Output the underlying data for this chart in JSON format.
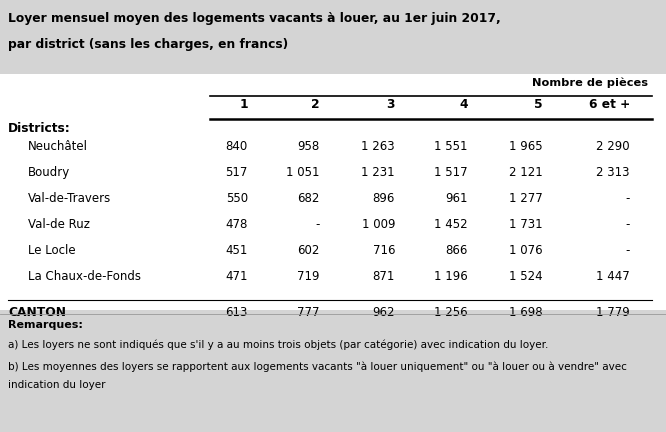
{
  "title_line1": "Loyer mensuel moyen des logements vacants à louer, au 1er juin 2017,",
  "title_line2": "par district (sans les charges, en francs)",
  "header_group": "Nombre de pièces",
  "col_headers": [
    "1",
    "2",
    "3",
    "4",
    "5",
    "6 et +"
  ],
  "districts_label": "Districts:",
  "canton_label": "CANTON",
  "rows": [
    {
      "name": "Neuchâtel",
      "values": [
        "840",
        "958",
        "1 263",
        "1 551",
        "1 965",
        "2 290"
      ]
    },
    {
      "name": "Boudry",
      "values": [
        "517",
        "1 051",
        "1 231",
        "1 517",
        "2 121",
        "2 313"
      ]
    },
    {
      "name": "Val-de-Travers",
      "values": [
        "550",
        "682",
        "896",
        "961",
        "1 277",
        "-"
      ]
    },
    {
      "name": "Val-de Ruz",
      "values": [
        "478",
        "-",
        "1 009",
        "1 452",
        "1 731",
        "-"
      ]
    },
    {
      "name": "Le Locle",
      "values": [
        "451",
        "602",
        "716",
        "866",
        "1 076",
        "-"
      ]
    },
    {
      "name": "La Chaux-de-Fonds",
      "values": [
        "471",
        "719",
        "871",
        "1 196",
        "1 524",
        "1 447"
      ]
    }
  ],
  "canton_values": [
    "613",
    "777",
    "962",
    "1 256",
    "1 698",
    "1 779"
  ],
  "remarks_label": "Remarques:",
  "remark_a": "a) Les loyers ne sont indiqués que s'il y a au moins trois objets (par catégorie) avec indication du loyer.",
  "remark_b": "b) Les moyennes des loyers se rapportent aux logements vacants \"à louer uniquement\" ou \"à louer ou à vendre\" avec",
  "remark_b2": "indication du loyer",
  "bg_color": "#d4d4d4",
  "white_color": "#ffffff"
}
